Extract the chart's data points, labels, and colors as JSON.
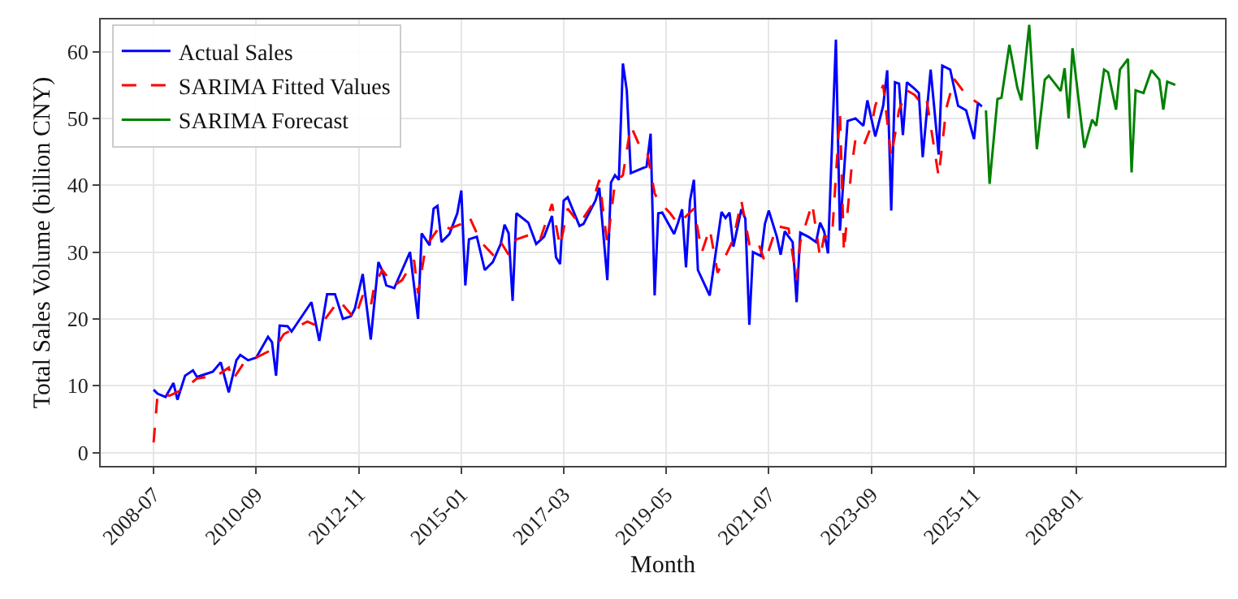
{
  "chart_data": {
    "type": "line",
    "xlabel": "Month",
    "ylabel": "Total Sales Volume (billion CNY)",
    "xlim": [
      "2007-05-20",
      "2031-02-20"
    ],
    "ylim": [
      -2,
      64.8
    ],
    "xticks": [
      {
        "value": "2008-07",
        "label": "2008-07"
      },
      {
        "value": "2010-09",
        "label": "2010-09"
      },
      {
        "value": "2012-11",
        "label": "2012-11"
      },
      {
        "value": "2015-01",
        "label": "2015-01"
      },
      {
        "value": "2017-03",
        "label": "2017-03"
      },
      {
        "value": "2019-05",
        "label": "2019-05"
      },
      {
        "value": "2021-07",
        "label": "2021-07"
      },
      {
        "value": "2023-09",
        "label": "2023-09"
      },
      {
        "value": "2025-11",
        "label": "2025-11"
      },
      {
        "value": "2028-01",
        "label": "2028-01"
      }
    ],
    "yticks": [
      0,
      10,
      20,
      30,
      40,
      50,
      60
    ],
    "grid": true,
    "legend": "top left",
    "series": [
      {
        "name": "Actual Sales",
        "color": "#0000ff",
        "line_style": "solid",
        "x": [
          "2008-07",
          "2008-08",
          "2008-10",
          "2008-12",
          "2009-01",
          "2009-03",
          "2009-05",
          "2009-06",
          "2009-10",
          "2009-12",
          "2010-02",
          "2010-04",
          "2010-05",
          "2010-07",
          "2010-09",
          "2010-12",
          "2011-01",
          "2011-02",
          "2011-03",
          "2011-05",
          "2011-06",
          "2011-11",
          "2012-01",
          "2012-03",
          "2012-05",
          "2012-07",
          "2012-09",
          "2012-10",
          "2012-12",
          "2013-02",
          "2013-04",
          "2013-05",
          "2013-06",
          "2013-08",
          "2013-10",
          "2013-12",
          "2014-02",
          "2014-03",
          "2014-05",
          "2014-06",
          "2014-07",
          "2014-08",
          "2014-10",
          "2014-12",
          "2015-01",
          "2015-02",
          "2015-03",
          "2015-05",
          "2015-07",
          "2015-09",
          "2015-11",
          "2015-12",
          "2016-01",
          "2016-02",
          "2016-03",
          "2016-06",
          "2016-08",
          "2016-10",
          "2016-12",
          "2017-01",
          "2017-02",
          "2017-03",
          "2017-04",
          "2017-07",
          "2017-08",
          "2017-11",
          "2017-12",
          "2018-02",
          "2018-03",
          "2018-04",
          "2018-05",
          "2018-06",
          "2018-07",
          "2018-08",
          "2018-12",
          "2019-01",
          "2019-02",
          "2019-03",
          "2019-04",
          "2019-07",
          "2019-08",
          "2019-09",
          "2019-10",
          "2019-11",
          "2019-12",
          "2020-01",
          "2020-04",
          "2020-07",
          "2020-08",
          "2020-09",
          "2020-10",
          "2020-12",
          "2021-01",
          "2021-02",
          "2021-03",
          "2021-05",
          "2021-06",
          "2021-07",
          "2021-09",
          "2021-10",
          "2021-11",
          "2022-01",
          "2022-02",
          "2022-03",
          "2022-05",
          "2022-07",
          "2022-08",
          "2022-09",
          "2022-10",
          "2022-12",
          "2023-01",
          "2023-03",
          "2023-05",
          "2023-07",
          "2023-08",
          "2023-10",
          "2023-12",
          "2024-01",
          "2024-02",
          "2024-03",
          "2024-04",
          "2024-05",
          "2024-06",
          "2024-08",
          "2024-09",
          "2024-10",
          "2024-12",
          "2025-02",
          "2025-03",
          "2025-05",
          "2025-07",
          "2025-09",
          "2025-11",
          "2025-12",
          "2026-01"
        ],
        "values": [
          9.4,
          8.8,
          8.3,
          10.4,
          7.9,
          11.5,
          12.3,
          11.3,
          12.1,
          13.5,
          9.0,
          13.8,
          14.6,
          13.8,
          14.2,
          17.3,
          16.5,
          11.5,
          19.0,
          18.9,
          18.1,
          22.5,
          16.7,
          23.7,
          23.7,
          20.0,
          20.4,
          21.5,
          26.7,
          16.9,
          28.5,
          27.2,
          25.0,
          24.6,
          27.3,
          30.0,
          20.0,
          32.8,
          31.0,
          36.5,
          36.9,
          31.5,
          32.7,
          35.8,
          39.2,
          25.0,
          31.9,
          32.3,
          27.3,
          28.5,
          31.2,
          34.1,
          32.8,
          22.7,
          35.8,
          34.4,
          31.2,
          32.3,
          35.4,
          29.2,
          28.2,
          37.7,
          38.2,
          33.9,
          34.2,
          37.7,
          39.6,
          25.8,
          40.4,
          41.5,
          40.8,
          58.2,
          54.2,
          41.8,
          42.8,
          47.7,
          23.5,
          35.8,
          35.9,
          32.7,
          34.4,
          36.4,
          27.7,
          37.7,
          40.8,
          27.3,
          23.5,
          36.0,
          35.1,
          35.9,
          30.8,
          36.4,
          35.0,
          19.1,
          30.0,
          29.4,
          34.2,
          36.2,
          32.3,
          29.6,
          33.1,
          31.5,
          22.5,
          32.9,
          32.3,
          31.5,
          34.4,
          33.1,
          29.8,
          61.8,
          33.2,
          49.6,
          50.0,
          48.9,
          52.7,
          47.3,
          51.9,
          57.2,
          36.2,
          55.4,
          55.2,
          47.5,
          55.4,
          54.4,
          53.8,
          44.2,
          57.3,
          44.6,
          57.9,
          57.3,
          51.9,
          51.2,
          46.9,
          52.3,
          51.8
        ]
      },
      {
        "name": "SARIMA Fitted Values",
        "color": "#ff0000",
        "line_style": "dashed",
        "x": [
          "2008-07",
          "2008-08",
          "2008-11",
          "2009-03",
          "2009-06",
          "2009-11",
          "2010-02",
          "2010-03",
          "2010-06",
          "2010-09",
          "2011-01",
          "2011-02",
          "2011-04",
          "2011-10",
          "2012-01",
          "2012-06",
          "2012-10",
          "2012-12",
          "2013-02",
          "2013-03",
          "2013-05",
          "2013-08",
          "2013-10",
          "2014-01",
          "2014-02",
          "2014-04",
          "2014-08",
          "2014-10",
          "2015-01",
          "2015-03",
          "2015-06",
          "2015-09",
          "2015-11",
          "2016-01",
          "2016-03",
          "2016-07",
          "2016-09",
          "2016-12",
          "2017-02",
          "2017-04",
          "2017-07",
          "2017-10",
          "2017-12",
          "2018-02",
          "2018-04",
          "2018-06",
          "2018-08",
          "2018-10",
          "2018-12",
          "2019-02",
          "2019-03",
          "2019-06",
          "2019-08",
          "2019-12",
          "2020-02",
          "2020-04",
          "2020-06",
          "2020-10",
          "2020-12",
          "2021-02",
          "2021-04",
          "2021-06",
          "2021-09",
          "2021-12",
          "2022-02",
          "2022-03",
          "2022-06",
          "2022-08",
          "2022-09",
          "2022-11",
          "2023-01",
          "2023-02",
          "2023-04",
          "2023-05",
          "2023-07",
          "2023-09",
          "2023-10",
          "2023-12",
          "2024-02",
          "2024-04",
          "2024-06",
          "2024-08",
          "2024-10",
          "2024-11",
          "2025-02",
          "2025-04",
          "2025-06",
          "2025-09",
          "2025-12"
        ],
        "values": [
          1.5,
          8.8,
          8.5,
          9.6,
          11.1,
          11.5,
          12.7,
          10.8,
          13.5,
          14.2,
          15.4,
          15.8,
          17.7,
          19.6,
          18.8,
          22.8,
          20.0,
          23.5,
          21.9,
          25.0,
          27.3,
          25.0,
          25.8,
          28.8,
          23.8,
          30.8,
          34.2,
          33.5,
          34.2,
          35.4,
          31.5,
          29.6,
          31.5,
          29.6,
          31.9,
          32.7,
          31.9,
          37.2,
          30.8,
          36.5,
          34.2,
          36.9,
          40.8,
          31.2,
          40.4,
          41.5,
          48.9,
          46.2,
          45.4,
          38.8,
          37.7,
          35.8,
          34.2,
          36.5,
          30.0,
          33.5,
          26.9,
          31.9,
          37.7,
          31.2,
          31.9,
          28.5,
          33.9,
          33.5,
          25.8,
          31.5,
          37.3,
          29.2,
          32.3,
          32.3,
          50.8,
          30.0,
          42.7,
          46.9,
          45.8,
          48.9,
          51.9,
          55.0,
          44.2,
          51.2,
          54.2,
          53.5,
          51.9,
          52.7,
          41.3,
          51.5,
          55.9,
          53.5,
          52.3
        ]
      },
      {
        "name": "SARIMA Forecast",
        "color": "#008000",
        "line_style": "solid",
        "x": [
          "2026-02",
          "2026-03",
          "2026-05",
          "2026-06",
          "2026-08",
          "2026-10",
          "2026-11",
          "2027-01",
          "2027-03",
          "2027-05",
          "2027-06",
          "2027-09",
          "2027-10",
          "2027-11",
          "2027-12",
          "2028-03",
          "2028-05",
          "2028-06",
          "2028-08",
          "2028-09",
          "2028-11",
          "2028-12",
          "2029-02",
          "2029-03",
          "2029-04",
          "2029-06",
          "2029-08",
          "2029-10",
          "2029-11",
          "2029-12",
          "2030-02"
        ],
        "values": [
          51.2,
          40.2,
          52.9,
          53.1,
          61.0,
          54.6,
          52.7,
          64.0,
          45.4,
          55.8,
          56.4,
          54.1,
          57.5,
          50.0,
          60.5,
          45.6,
          49.8,
          48.9,
          57.3,
          56.9,
          51.3,
          57.3,
          58.9,
          41.9,
          54.2,
          53.8,
          57.2,
          55.8,
          51.3,
          55.5,
          55.0
        ]
      }
    ]
  }
}
